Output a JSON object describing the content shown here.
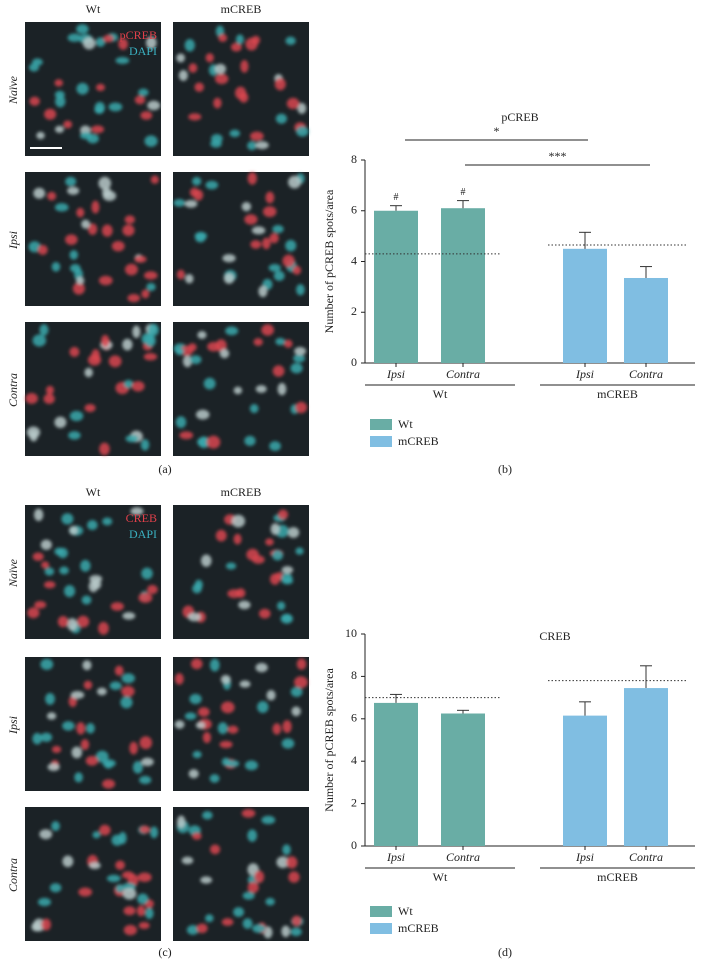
{
  "image_panels": [
    {
      "columns": [
        "Wt",
        "mCREB"
      ],
      "stains": [
        "pCREB",
        "DAPI"
      ],
      "rows": [
        "Naïve",
        "Ipsi",
        "Contra"
      ],
      "label": "(a)"
    },
    {
      "columns": [
        "Wt",
        "mCREB"
      ],
      "stains": [
        "CREB",
        "DAPI"
      ],
      "rows": [
        "Naïve",
        "Ipsi",
        "Contra"
      ],
      "label": "(c)"
    }
  ],
  "chart_data": [
    {
      "type": "bar",
      "title": "pCREB",
      "y_label": "Number of pCREB spots/area",
      "label": "(b)",
      "categories": [
        "Ipsi",
        "Contra",
        "Ipsi",
        "Contra"
      ],
      "series": [
        {
          "name": "Wt",
          "color": "#69ada5",
          "values": [
            6.0,
            6.1,
            null,
            null
          ],
          "errors": [
            0.2,
            0.3,
            null,
            null
          ],
          "markers": [
            "#",
            "#",
            null,
            null
          ],
          "reference": 4.3
        },
        {
          "name": "mCREB",
          "color": "#80bee2",
          "values": [
            null,
            null,
            4.5,
            3.35
          ],
          "errors": [
            null,
            null,
            0.65,
            0.45
          ],
          "markers": [
            null,
            null,
            null,
            null
          ],
          "reference": 4.65
        }
      ],
      "annotations": [
        "*",
        "***"
      ],
      "ylim": [
        0,
        8
      ],
      "yticks": [
        0,
        2,
        4,
        6,
        8
      ]
    },
    {
      "type": "bar",
      "title": "CREB",
      "y_label": "Number of pCREB spots/area",
      "label": "(d)",
      "categories": [
        "Ipsi",
        "Contra",
        "Ipsi",
        "Contra"
      ],
      "series": [
        {
          "name": "Wt",
          "color": "#69ada5",
          "values": [
            6.75,
            6.25,
            null,
            null
          ],
          "errors": [
            0.4,
            0.15,
            null,
            null
          ],
          "markers": [
            null,
            null,
            null,
            null
          ],
          "reference": 7.0
        },
        {
          "name": "mCREB",
          "color": "#80bee2",
          "values": [
            null,
            null,
            6.15,
            7.45
          ],
          "errors": [
            null,
            null,
            0.65,
            1.05
          ],
          "markers": [
            null,
            null,
            null,
            null
          ],
          "reference": 7.8
        }
      ],
      "annotations": [],
      "ylim": [
        0,
        10
      ],
      "yticks": [
        0,
        2,
        4,
        6,
        8,
        10
      ]
    }
  ]
}
